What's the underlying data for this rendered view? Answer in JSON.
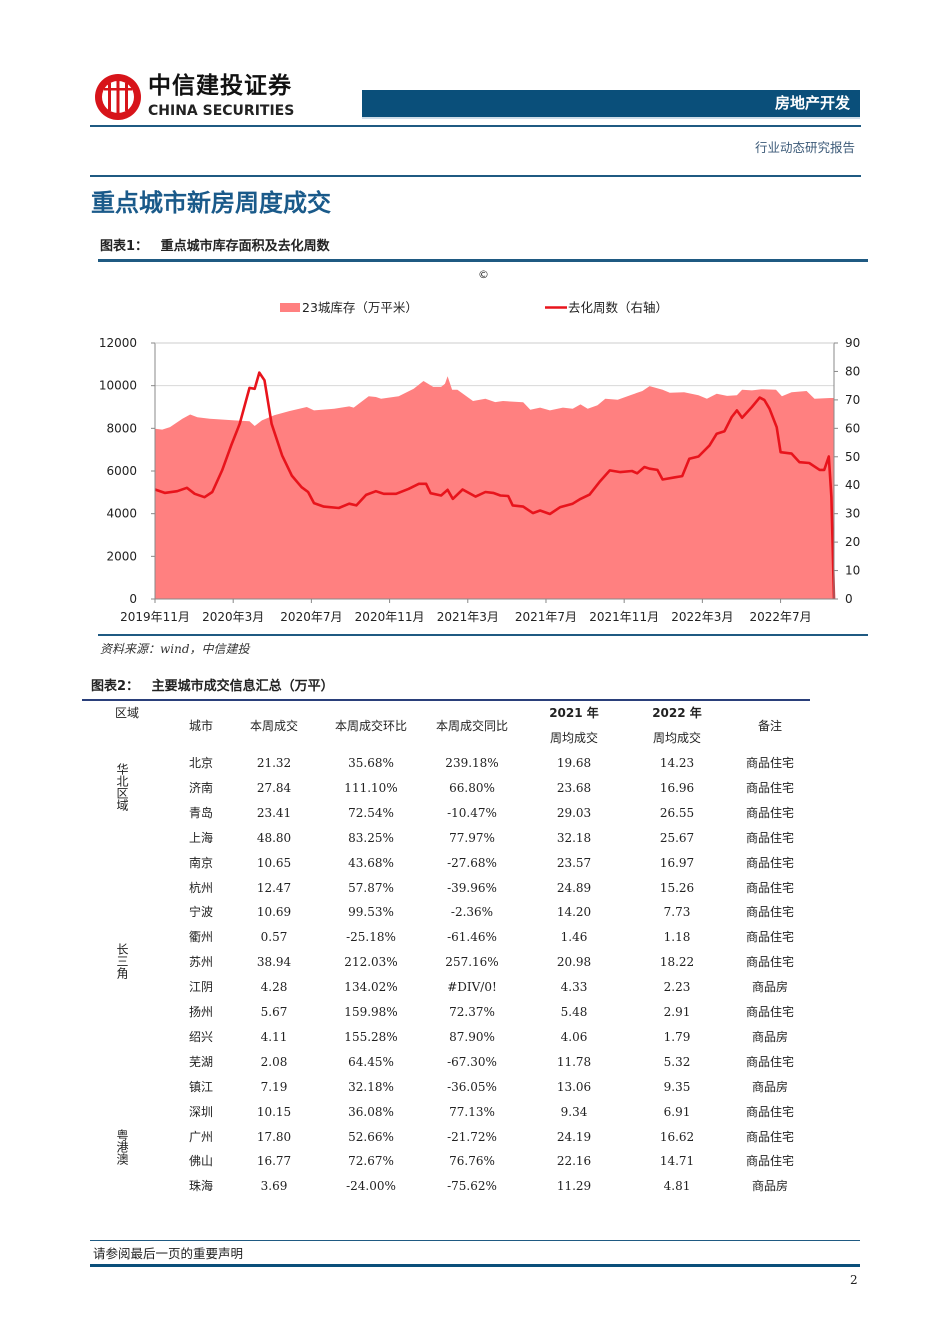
{
  "header": {
    "logo_cn": "中信建投证券",
    "logo_en": "CHINA SECURITIES",
    "sector": "房地产开发",
    "report_type": "行业动态研究报告"
  },
  "section_title": "重点城市新房周度成交",
  "figure1": {
    "label": "图表1：",
    "title": "重点城市库存面积及去化周数",
    "copyright": "©",
    "source": "资料来源：wind，中信建投"
  },
  "chart_data": {
    "type": "area+line",
    "legend_placement": "top",
    "grid": "horizontal at 10000 only",
    "colors": {
      "inventory": "#ff8080",
      "weeks": "#e8141c"
    },
    "x_ticks": [
      "2019年11月",
      "2020年3月",
      "2020年7月",
      "2020年11月",
      "2021年3月",
      "2021年7月",
      "2021年11月",
      "2022年3月",
      "2022年7月"
    ],
    "x_tick_dates": [
      "2019-11-01",
      "2020-03-01",
      "2020-07-01",
      "2020-11-01",
      "2021-03-01",
      "2021-07-01",
      "2021-11-01",
      "2022-03-01",
      "2022-07-01"
    ],
    "xlim": [
      "2019-11-01",
      "2022-09-23"
    ],
    "y_left": {
      "ylim": [
        0,
        12000
      ],
      "ticks": [
        "0",
        "2000",
        "4000",
        "6000",
        "8000",
        "10000",
        "12000"
      ]
    },
    "y_right": {
      "ylim": [
        0,
        90
      ],
      "ticks": [
        "0",
        "10",
        "20",
        "30",
        "40",
        "50",
        "60",
        "70",
        "80",
        "90"
      ]
    },
    "series": [
      {
        "name": "23城库存（万平米）",
        "type": "area",
        "axis": "left",
        "points": [
          [
            "2019-11-01",
            7980
          ],
          [
            "2019-11-12",
            7940
          ],
          [
            "2019-11-24",
            8060
          ],
          [
            "2019-12-13",
            8450
          ],
          [
            "2019-12-25",
            8650
          ],
          [
            "2020-01-06",
            8520
          ],
          [
            "2020-01-25",
            8450
          ],
          [
            "2020-02-10",
            8420
          ],
          [
            "2020-03-03",
            8370
          ],
          [
            "2020-03-26",
            8330
          ],
          [
            "2020-04-04",
            8110
          ],
          [
            "2020-04-15",
            8370
          ],
          [
            "2020-05-04",
            8610
          ],
          [
            "2020-05-27",
            8810
          ],
          [
            "2020-06-24",
            9000
          ],
          [
            "2020-07-05",
            8840
          ],
          [
            "2020-08-06",
            8920
          ],
          [
            "2020-08-29",
            9030
          ],
          [
            "2020-09-06",
            8970
          ],
          [
            "2020-09-29",
            9500
          ],
          [
            "2020-10-10",
            9470
          ],
          [
            "2020-10-18",
            9390
          ],
          [
            "2020-10-30",
            9440
          ],
          [
            "2020-11-15",
            9500
          ],
          [
            "2020-12-08",
            9860
          ],
          [
            "2020-12-23",
            10220
          ],
          [
            "2021-01-08",
            9940
          ],
          [
            "2021-01-20",
            9940
          ],
          [
            "2021-01-26",
            10090
          ],
          [
            "2021-01-30",
            10440
          ],
          [
            "2021-02-07",
            9810
          ],
          [
            "2021-02-15",
            9810
          ],
          [
            "2021-03-09",
            9280
          ],
          [
            "2021-03-28",
            9390
          ],
          [
            "2021-04-13",
            9230
          ],
          [
            "2021-04-25",
            9280
          ],
          [
            "2021-05-26",
            9220
          ],
          [
            "2021-06-07",
            8870
          ],
          [
            "2021-06-22",
            8970
          ],
          [
            "2021-07-07",
            8840
          ],
          [
            "2021-07-27",
            8970
          ],
          [
            "2021-08-12",
            8920
          ],
          [
            "2021-08-24",
            9120
          ],
          [
            "2021-09-05",
            8920
          ],
          [
            "2021-09-20",
            9080
          ],
          [
            "2021-10-02",
            9390
          ],
          [
            "2021-10-21",
            9340
          ],
          [
            "2021-11-13",
            9580
          ],
          [
            "2021-11-29",
            9750
          ],
          [
            "2021-12-10",
            9980
          ],
          [
            "2021-12-30",
            9810
          ],
          [
            "2022-01-11",
            9670
          ],
          [
            "2022-02-03",
            9690
          ],
          [
            "2022-02-25",
            9550
          ],
          [
            "2022-03-08",
            9390
          ],
          [
            "2022-03-23",
            9620
          ],
          [
            "2022-04-09",
            9520
          ],
          [
            "2022-04-24",
            9550
          ],
          [
            "2022-05-02",
            9810
          ],
          [
            "2022-05-17",
            9780
          ],
          [
            "2022-06-02",
            9830
          ],
          [
            "2022-06-24",
            9810
          ],
          [
            "2022-07-03",
            9500
          ],
          [
            "2022-07-18",
            9690
          ],
          [
            "2022-08-11",
            9750
          ],
          [
            "2022-08-23",
            9390
          ],
          [
            "2022-09-17",
            9420
          ]
        ]
      },
      {
        "name": "去化周数（右轴）",
        "type": "line",
        "axis": "right",
        "points": [
          [
            "2019-11-01",
            38.5
          ],
          [
            "2019-11-16",
            37.3
          ],
          [
            "2019-12-05",
            37.9
          ],
          [
            "2019-12-20",
            39.1
          ],
          [
            "2020-01-02",
            37.0
          ],
          [
            "2020-01-17",
            35.8
          ],
          [
            "2020-01-29",
            37.6
          ],
          [
            "2020-02-14",
            45.2
          ],
          [
            "2020-02-28",
            54.0
          ],
          [
            "2020-03-11",
            61.6
          ],
          [
            "2020-03-26",
            74.2
          ],
          [
            "2020-04-04",
            73.9
          ],
          [
            "2020-04-11",
            79.6
          ],
          [
            "2020-04-19",
            76.9
          ],
          [
            "2020-04-30",
            61.6
          ],
          [
            "2020-05-16",
            50.5
          ],
          [
            "2020-06-01",
            43.4
          ],
          [
            "2020-06-16",
            39.3
          ],
          [
            "2020-06-26",
            37.6
          ],
          [
            "2020-07-05",
            33.7
          ],
          [
            "2020-07-20",
            32.5
          ],
          [
            "2020-08-13",
            32.0
          ],
          [
            "2020-08-29",
            33.5
          ],
          [
            "2020-09-10",
            32.9
          ],
          [
            "2020-09-25",
            36.6
          ],
          [
            "2020-10-10",
            37.9
          ],
          [
            "2020-10-22",
            37.0
          ],
          [
            "2020-11-11",
            37.0
          ],
          [
            "2020-11-30",
            38.7
          ],
          [
            "2020-12-16",
            40.5
          ],
          [
            "2020-12-27",
            40.5
          ],
          [
            "2021-01-04",
            37.2
          ],
          [
            "2021-01-20",
            36.4
          ],
          [
            "2021-01-30",
            38.4
          ],
          [
            "2021-02-08",
            35.2
          ],
          [
            "2021-02-23",
            38.5
          ],
          [
            "2021-03-13",
            36.0
          ],
          [
            "2021-03-28",
            37.6
          ],
          [
            "2021-04-10",
            37.3
          ],
          [
            "2021-04-21",
            36.4
          ],
          [
            "2021-05-03",
            36.2
          ],
          [
            "2021-05-10",
            32.9
          ],
          [
            "2021-05-26",
            32.5
          ],
          [
            "2021-06-11",
            30.2
          ],
          [
            "2021-06-22",
            31.1
          ],
          [
            "2021-07-07",
            29.9
          ],
          [
            "2021-07-23",
            32.3
          ],
          [
            "2021-08-12",
            33.5
          ],
          [
            "2021-08-24",
            35.2
          ],
          [
            "2021-09-08",
            36.7
          ],
          [
            "2021-09-24",
            41.4
          ],
          [
            "2021-10-09",
            45.2
          ],
          [
            "2021-10-25",
            44.6
          ],
          [
            "2021-11-13",
            45.0
          ],
          [
            "2021-11-21",
            44.2
          ],
          [
            "2021-12-02",
            46.4
          ],
          [
            "2021-12-10",
            45.8
          ],
          [
            "2021-12-22",
            45.4
          ],
          [
            "2021-12-30",
            42.0
          ],
          [
            "2022-01-19",
            42.8
          ],
          [
            "2022-01-30",
            43.2
          ],
          [
            "2022-02-11",
            49.3
          ],
          [
            "2022-02-25",
            50.1
          ],
          [
            "2022-03-12",
            54.0
          ],
          [
            "2022-03-23",
            58.1
          ],
          [
            "2022-04-05",
            59.0
          ],
          [
            "2022-04-16",
            64.0
          ],
          [
            "2022-04-24",
            66.3
          ],
          [
            "2022-05-02",
            63.7
          ],
          [
            "2022-05-17",
            67.5
          ],
          [
            "2022-05-29",
            70.8
          ],
          [
            "2022-06-06",
            70.0
          ],
          [
            "2022-06-14",
            66.9
          ],
          [
            "2022-06-25",
            60.4
          ],
          [
            "2022-07-01",
            51.6
          ],
          [
            "2022-07-18",
            51.1
          ],
          [
            "2022-07-30",
            48.1
          ],
          [
            "2022-08-15",
            47.8
          ],
          [
            "2022-08-31",
            45.4
          ],
          [
            "2022-09-08",
            45.4
          ],
          [
            "2022-09-15",
            50.1
          ],
          [
            "2022-09-19",
            35.8
          ],
          [
            "2022-09-23",
            0
          ]
        ]
      }
    ]
  },
  "figure2": {
    "label": "图表2：",
    "title": "主要城市成交信息汇总（万平）",
    "columns": {
      "region": "区域",
      "city": "城市",
      "week": "本周成交",
      "wow": "本周成交环比",
      "yoy": "本周成交同比",
      "avg2021_year": "2021 年",
      "avg2021_sub": "周均成交",
      "avg2022_year": "2022 年",
      "avg2022_sub": "周均成交",
      "note": "备注"
    },
    "regions": [
      {
        "name": "华北区域"
      },
      {
        "name": "长三角"
      },
      {
        "name": "粤港澳"
      }
    ],
    "rows": [
      [
        "北京",
        "21.32",
        "35.68%",
        "239.18%",
        "19.68",
        "14.23",
        "商品住宅"
      ],
      [
        "济南",
        "27.84",
        "111.10%",
        "66.80%",
        "23.68",
        "16.96",
        "商品住宅"
      ],
      [
        "青岛",
        "23.41",
        "72.54%",
        "-10.47%",
        "29.03",
        "26.55",
        "商品住宅"
      ],
      [
        "上海",
        "48.80",
        "83.25%",
        "77.97%",
        "32.18",
        "25.67",
        "商品住宅"
      ],
      [
        "南京",
        "10.65",
        "43.68%",
        "-27.68%",
        "23.57",
        "16.97",
        "商品住宅"
      ],
      [
        "杭州",
        "12.47",
        "57.87%",
        "-39.96%",
        "24.89",
        "15.26",
        "商品住宅"
      ],
      [
        "宁波",
        "10.69",
        "99.53%",
        "-2.36%",
        "14.20",
        "7.73",
        "商品住宅"
      ],
      [
        "衢州",
        "0.57",
        "-25.18%",
        "-61.46%",
        "1.46",
        "1.18",
        "商品住宅"
      ],
      [
        "苏州",
        "38.94",
        "212.03%",
        "257.16%",
        "20.98",
        "18.22",
        "商品住宅"
      ],
      [
        "江阴",
        "4.28",
        "134.02%",
        "#DIV/0!",
        "4.33",
        "2.23",
        "商品房"
      ],
      [
        "扬州",
        "5.67",
        "159.98%",
        "72.37%",
        "5.48",
        "2.91",
        "商品住宅"
      ],
      [
        "绍兴",
        "4.11",
        "155.28%",
        "87.90%",
        "4.06",
        "1.79",
        "商品房"
      ],
      [
        "芜湖",
        "2.08",
        "64.45%",
        "-67.30%",
        "11.78",
        "5.32",
        "商品住宅"
      ],
      [
        "镇江",
        "7.19",
        "32.18%",
        "-36.05%",
        "13.06",
        "9.35",
        "商品房"
      ],
      [
        "深圳",
        "10.15",
        "36.08%",
        "77.13%",
        "9.34",
        "6.91",
        "商品住宅"
      ],
      [
        "广州",
        "17.80",
        "52.66%",
        "-21.72%",
        "24.19",
        "16.62",
        "商品住宅"
      ],
      [
        "佛山",
        "16.77",
        "72.67%",
        "76.76%",
        "22.16",
        "14.71",
        "商品住宅"
      ],
      [
        "珠海",
        "3.69",
        "-24.00%",
        "-75.62%",
        "11.29",
        "4.81",
        "商品房"
      ]
    ]
  },
  "footer": {
    "disclaimer": "请参阅最后一页的重要声明",
    "page_number": "2"
  }
}
